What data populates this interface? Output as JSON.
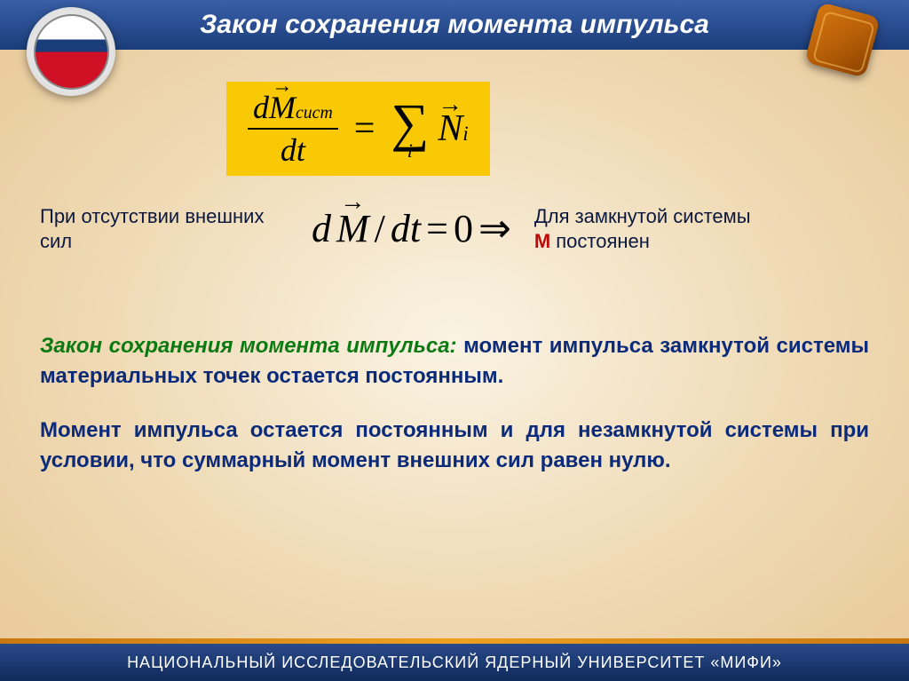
{
  "header": {
    "title": "Закон сохранения момента импульса"
  },
  "formula_main": {
    "bg_color": "#f9c905",
    "numerator_d": "d",
    "numerator_M": "M",
    "numerator_sub": "сист",
    "denominator": "dt",
    "equals": "=",
    "sigma": "∑",
    "sigma_sub": "i",
    "rhs_N": "N",
    "rhs_sub": "i"
  },
  "row2": {
    "left_text": "При отсутствии внешних сил",
    "mid_lhs_d": "d",
    "mid_lhs_M": "M",
    "mid_slash": "/",
    "mid_dt": "dt",
    "mid_eq": "=",
    "mid_zero": "0",
    "mid_arrow": "⇒",
    "right_line1": "Для замкнутой системы",
    "right_M": "М",
    "right_line2": " постоянен"
  },
  "law1": {
    "title": "Закон сохранения момента импульса: ",
    "body": "момент импульса замкнутой системы материальных точек остается постоянным."
  },
  "law2": {
    "body": "Момент импульса остается постоянным и для незамкнутой системы при условии, что суммарный момент внешних сил равен нулю."
  },
  "footer": {
    "text": "НАЦИОНАЛЬНЫЙ ИССЛЕДОВАТЕЛЬСКИЙ ЯДЕРНЫЙ УНИВЕРСИТЕТ «МИФИ»"
  },
  "colors": {
    "header_bg_top": "#3a5fa8",
    "header_bg_bottom": "#1a3d7a",
    "title_green": "#0b7a12",
    "body_blue": "#0b2a7a",
    "m_red": "#c00808",
    "footer_bg_top": "#2a4a8a",
    "footer_bg_bottom": "#0f2a5a"
  }
}
